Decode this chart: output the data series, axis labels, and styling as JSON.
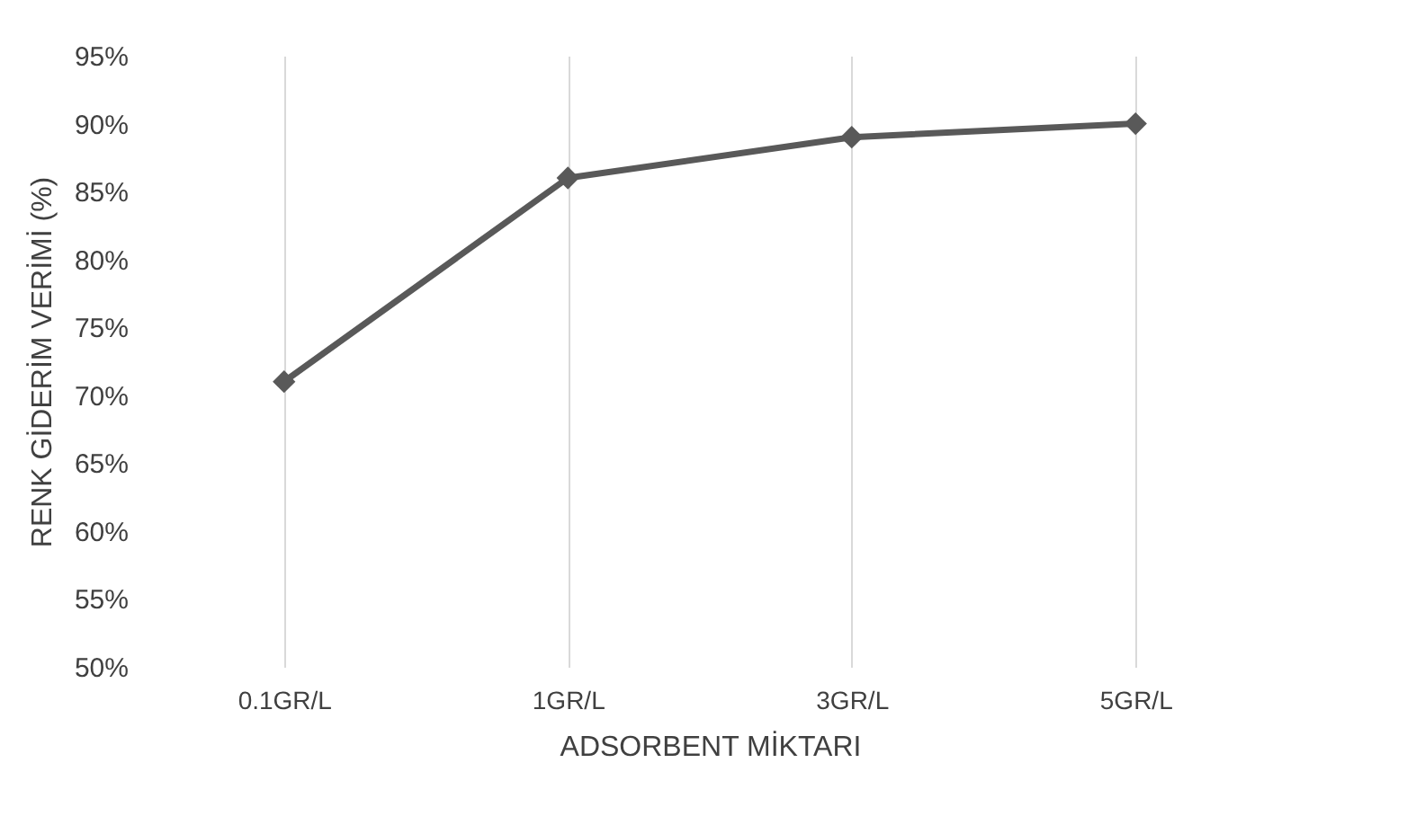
{
  "chart_data": {
    "type": "line",
    "xlabel": "ADSORBENT MİKTARI",
    "ylabel": "RENK GİDERİM VERİMİ (%)",
    "categories": [
      "0.1GR/L",
      "1GR/L",
      "3GR/L",
      "5GR/L"
    ],
    "series": [
      {
        "color": "#595959",
        "values": [
          71,
          86,
          89,
          90
        ]
      }
    ],
    "ylim": [
      50,
      95
    ],
    "yticks": [
      {
        "value": 50,
        "label": "50%"
      },
      {
        "value": 55,
        "label": "55%"
      },
      {
        "value": 60,
        "label": "60%"
      },
      {
        "value": 65,
        "label": "65%"
      },
      {
        "value": 70,
        "label": "70%"
      },
      {
        "value": 75,
        "label": "75%"
      },
      {
        "value": 80,
        "label": "80%"
      },
      {
        "value": 85,
        "label": "85%"
      },
      {
        "value": 90,
        "label": "90%"
      },
      {
        "value": 95,
        "label": "95%"
      }
    ],
    "grid": "x",
    "marker": "diamond",
    "line_style": "solid"
  }
}
